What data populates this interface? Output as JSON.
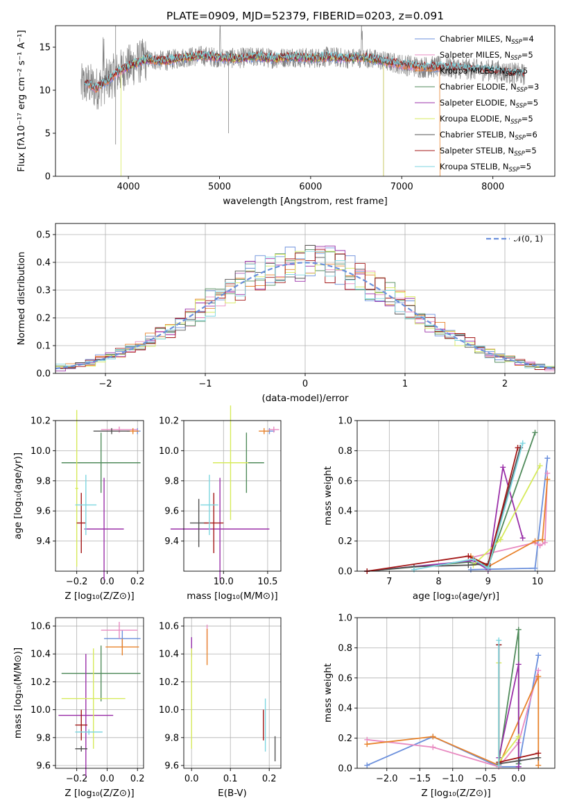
{
  "title": "PLATE=0909, MJD=52379, FIBERID=0203, z=0.091",
  "colors": {
    "chabrier_miles": "#6a8fdc",
    "salpeter_miles": "#e889c0",
    "kroupa_miles": "#e8822a",
    "chabrier_elodie": "#4f8a5a",
    "salpeter_elodie": "#9a2fa8",
    "kroupa_elodie": "#d6ea5a",
    "chabrier_stelib": "#505050",
    "salpeter_stelib": "#a31515",
    "kroupa_stelib": "#7dd6e0",
    "data_spectrum": "#808080"
  },
  "chart_data": [
    {
      "type": "line",
      "id": "spectrum",
      "xlabel": "wavelength [Angstrom, rest frame]",
      "ylabel": "Flux [fλ10⁻¹⁷ erg cm⁻² s⁻¹ A⁻¹]",
      "xlim": [
        3200,
        8680
      ],
      "ylim": [
        0,
        17.5
      ],
      "xticks": [
        "4000",
        "5000",
        "6000",
        "7000",
        "8000"
      ],
      "yticks": [
        "0",
        "5",
        "10",
        "15"
      ],
      "legend": [
        {
          "main": "Chabrier MILES, N",
          "sub": "SSP",
          "tail": "=4",
          "color": "chabrier_miles"
        },
        {
          "main": "Salpeter MILES, N",
          "sub": "SSP",
          "tail": "=5",
          "color": "salpeter_miles"
        },
        {
          "main": "Kroupa MILES, N",
          "sub": "SSP",
          "tail": "=5",
          "color": "kroupa_miles"
        },
        {
          "main": "Chabrier ELODIE, N",
          "sub": "SSP",
          "tail": "=3",
          "color": "chabrier_elodie"
        },
        {
          "main": "Salpeter ELODIE, N",
          "sub": "SSP",
          "tail": "=5",
          "color": "salpeter_elodie"
        },
        {
          "main": "Kroupa ELODIE, N",
          "sub": "SSP",
          "tail": "=5",
          "color": "kroupa_elodie"
        },
        {
          "main": "Chabrier STELIB, N",
          "sub": "SSP",
          "tail": "=6",
          "color": "chabrier_stelib"
        },
        {
          "main": "Salpeter STELIB, N",
          "sub": "SSP",
          "tail": "=5",
          "color": "salpeter_stelib"
        },
        {
          "main": "Kroupa STELIB, N",
          "sub": "SSP",
          "tail": "=5",
          "color": "kroupa_stelib"
        }
      ],
      "legend_position": "upper right",
      "continuum": {
        "x": [
          3480,
          3550,
          3650,
          3750,
          3850,
          3950,
          4050,
          4200,
          4400,
          4600,
          4800,
          5000,
          5200,
          5400,
          5600,
          5800,
          6000,
          6200,
          6400,
          6600,
          6800,
          7000,
          7200,
          7400,
          7600,
          7800,
          8000,
          8200,
          8350
        ],
        "y": [
          10.5,
          10.8,
          10.2,
          11.0,
          11.8,
          12.5,
          13.0,
          13.6,
          13.4,
          13.8,
          14.0,
          13.8,
          13.7,
          13.9,
          13.7,
          13.9,
          13.7,
          13.9,
          13.7,
          13.8,
          13.4,
          13.0,
          12.7,
          12.7,
          12.6,
          12.4,
          12.3,
          12.0,
          11.8
        ]
      }
    },
    {
      "type": "histogram",
      "id": "residuals",
      "xlabel": "(data-model)/error",
      "ylabel": "Normed distribution",
      "xlim": [
        -2.5,
        2.5
      ],
      "ylim": [
        0,
        0.54
      ],
      "xticks": [
        "−2",
        "−1",
        "0",
        "1",
        "2"
      ],
      "yticks": [
        "0.0",
        "0.1",
        "0.2",
        "0.3",
        "0.4",
        "0.5"
      ],
      "legend": [
        {
          "label": "𝒩(0, 1)",
          "color": "#6a8fdc"
        }
      ],
      "legend_position": "upper right",
      "reference_curve": "normal pdf, mean 0, sigma 1"
    },
    {
      "type": "scatter",
      "id": "age_vs_Z",
      "xlabel": "Z [log₁₀(Z/Z⊙)]",
      "ylabel": "age  [log₁₀(age/yr)]",
      "xlim": [
        -0.34,
        0.24
      ],
      "ylim": [
        9.2,
        10.2
      ],
      "xticks": [
        "−0.2",
        "0.0",
        "0.2"
      ],
      "yticks": [
        "9.4",
        "9.6",
        "9.8",
        "10.0",
        "10.2"
      ],
      "points": [
        {
          "x": 0.2,
          "xerr": 0.02,
          "y": 10.13,
          "yerr": 0.02,
          "color": "chabrier_miles"
        },
        {
          "x": 0.08,
          "xerr": 0.12,
          "y": 10.14,
          "yerr": 0.02,
          "color": "salpeter_miles"
        },
        {
          "x": 0.17,
          "xerr": 0.04,
          "y": 10.13,
          "yerr": 0.02,
          "color": "kroupa_miles"
        },
        {
          "x": -0.04,
          "xerr": 0.26,
          "y": 9.92,
          "yerr": 0.2,
          "color": "chabrier_elodie"
        },
        {
          "x": -0.02,
          "xerr": 0.13,
          "y": 9.48,
          "yerr": 0.34,
          "color": "salpeter_elodie"
        },
        {
          "x": -0.2,
          "xerr": 0.01,
          "y": 9.75,
          "yerr": 0.52,
          "color": "kroupa_elodie"
        },
        {
          "x": 0.03,
          "xerr": 0.12,
          "y": 10.13,
          "yerr": 0.02,
          "color": "chabrier_stelib"
        },
        {
          "x": -0.17,
          "xerr": 0.03,
          "y": 9.52,
          "yerr": 0.2,
          "color": "salpeter_stelib"
        },
        {
          "x": -0.14,
          "xerr": 0.07,
          "y": 9.64,
          "yerr": 0.2,
          "color": "kroupa_stelib"
        }
      ]
    },
    {
      "type": "scatter",
      "id": "age_vs_mass",
      "xlabel": "mass [log₁₀(M/M⊙)]",
      "xlim": [
        9.55,
        10.65
      ],
      "ylim": [
        9.2,
        10.2
      ],
      "xticks": [
        "10.0",
        "10.5"
      ],
      "yticks": [
        "9.4",
        "9.6",
        "9.8",
        "10.0",
        "10.2"
      ],
      "points": [
        {
          "x": 10.52,
          "xerr": 0.06,
          "y": 10.13,
          "yerr": 0.02,
          "color": "chabrier_miles"
        },
        {
          "x": 10.57,
          "xerr": 0.06,
          "y": 10.14,
          "yerr": 0.02,
          "color": "salpeter_miles"
        },
        {
          "x": 10.46,
          "xerr": 0.06,
          "y": 10.13,
          "yerr": 0.02,
          "color": "kroupa_miles"
        },
        {
          "x": 10.26,
          "xerr": 0.2,
          "y": 9.92,
          "yerr": 0.2,
          "color": "chabrier_elodie"
        },
        {
          "x": 9.96,
          "xerr": 0.56,
          "y": 9.48,
          "yerr": 0.34,
          "color": "salpeter_elodie"
        },
        {
          "x": 10.08,
          "xerr": 0.2,
          "y": 9.92,
          "yerr": 0.38,
          "color": "kroupa_elodie"
        },
        {
          "x": 9.72,
          "xerr": 0.1,
          "y": 9.52,
          "yerr": 0.16,
          "color": "chabrier_stelib"
        },
        {
          "x": 9.89,
          "xerr": 0.11,
          "y": 9.52,
          "yerr": 0.2,
          "color": "salpeter_stelib"
        },
        {
          "x": 9.84,
          "xerr": 0.1,
          "y": 9.64,
          "yerr": 0.2,
          "color": "kroupa_stelib"
        }
      ]
    },
    {
      "type": "line",
      "id": "weight_vs_age",
      "xlabel": "age  [log₁₀(age/yr)]",
      "ylabel": "mass weight",
      "xlim": [
        6.35,
        10.35
      ],
      "ylim": [
        0,
        1
      ],
      "xticks": [
        "7",
        "8",
        "9",
        "10"
      ],
      "yticks": [
        "0.0",
        "0.2",
        "0.4",
        "0.6",
        "0.8",
        "1.0"
      ],
      "series": [
        {
          "color": "chabrier_miles",
          "x": [
            8.65,
            9.95,
            10.2
          ],
          "y": [
            0.01,
            0.02,
            0.75
          ]
        },
        {
          "color": "salpeter_miles",
          "x": [
            8.65,
            9.95,
            10.05,
            10.15,
            10.2
          ],
          "y": [
            0.09,
            0.19,
            0.17,
            0.19,
            0.65
          ]
        },
        {
          "color": "kroupa_miles",
          "x": [
            8.65,
            9.0,
            9.95,
            10.1,
            10.2
          ],
          "y": [
            0.1,
            0.03,
            0.2,
            0.21,
            0.61
          ]
        },
        {
          "color": "chabrier_elodie",
          "x": [
            6.55,
            8.6,
            9.0,
            9.95
          ],
          "y": [
            0.0,
            0.06,
            0.03,
            0.92
          ]
        },
        {
          "color": "salpeter_elodie",
          "x": [
            6.55,
            8.7,
            9.0,
            9.3,
            9.7
          ],
          "y": [
            0.0,
            0.07,
            0.01,
            0.69,
            0.22
          ]
        },
        {
          "color": "kroupa_elodie",
          "x": [
            8.7,
            9.25,
            10.05
          ],
          "y": [
            0.04,
            0.21,
            0.7
          ]
        },
        {
          "color": "chabrier_stelib",
          "x": [
            6.55,
            7.5,
            8.6,
            9.0,
            9.65
          ],
          "y": [
            0.0,
            0.03,
            0.04,
            0.05,
            0.82
          ]
        },
        {
          "color": "salpeter_stelib",
          "x": [
            6.55,
            8.6,
            9.0,
            9.6
          ],
          "y": [
            0.0,
            0.1,
            0.04,
            0.82
          ]
        },
        {
          "color": "kroupa_stelib",
          "x": [
            7.5,
            8.7,
            9.0,
            9.7
          ],
          "y": [
            0.01,
            0.08,
            0.02,
            0.85
          ]
        }
      ]
    },
    {
      "type": "scatter",
      "id": "mass_vs_Z",
      "xlabel": "Z [log₁₀(Z/Z⊙)]",
      "ylabel": "mass [log₁₀(M/M⊙)]",
      "xlim": [
        -0.34,
        0.24
      ],
      "ylim": [
        9.58,
        10.66
      ],
      "xticks": [
        "−0.2",
        "0.0",
        "0.2"
      ],
      "yticks": [
        "9.6",
        "9.8",
        "10.0",
        "10.2",
        "10.4",
        "10.6"
      ],
      "points": [
        {
          "x": 0.1,
          "xerr": 0.12,
          "y": 10.51,
          "yerr": 0.06,
          "color": "chabrier_miles"
        },
        {
          "x": 0.08,
          "xerr": 0.12,
          "y": 10.57,
          "yerr": 0.06,
          "color": "salpeter_miles"
        },
        {
          "x": 0.1,
          "xerr": 0.11,
          "y": 10.45,
          "yerr": 0.06,
          "color": "kroupa_miles"
        },
        {
          "x": -0.04,
          "xerr": 0.26,
          "y": 10.26,
          "yerr": 0.2,
          "color": "chabrier_elodie"
        },
        {
          "x": -0.14,
          "xerr": 0.18,
          "y": 9.96,
          "yerr": 0.44,
          "color": "salpeter_elodie"
        },
        {
          "x": -0.09,
          "xerr": 0.21,
          "y": 10.08,
          "yerr": 0.36,
          "color": "kroupa_elodie"
        },
        {
          "x": -0.17,
          "xerr": 0.04,
          "y": 9.72,
          "yerr": 0.02,
          "color": "chabrier_stelib"
        },
        {
          "x": -0.17,
          "xerr": 0.04,
          "y": 9.89,
          "yerr": 0.11,
          "color": "salpeter_stelib"
        },
        {
          "x": -0.12,
          "xerr": 0.09,
          "y": 9.84,
          "yerr": 0.02,
          "color": "kroupa_stelib"
        }
      ]
    },
    {
      "type": "scatter",
      "id": "mass_vs_ebv",
      "xlabel": "E(B-V)",
      "xlim": [
        -0.02,
        0.23
      ],
      "ylim": [
        9.58,
        10.66
      ],
      "xticks": [
        "0.0",
        "0.1",
        "0.2"
      ],
      "yticks": [
        "9.6",
        "9.8",
        "10.0",
        "10.2",
        "10.4",
        "10.6"
      ],
      "points": [
        {
          "x": 0.0,
          "y": 10.45,
          "yerr": 0.07,
          "color": "chabrier_miles"
        },
        {
          "x": 0.04,
          "y": 10.52,
          "yerr": 0.09,
          "color": "salpeter_miles"
        },
        {
          "x": 0.04,
          "y": 10.45,
          "yerr": 0.13,
          "color": "kroupa_miles"
        },
        {
          "x": 0.0,
          "y": 10.45,
          "yerr": 0.07,
          "color": "salpeter_elodie"
        },
        {
          "x": 0.0,
          "y": 10.08,
          "yerr": 0.36,
          "color": "kroupa_elodie"
        },
        {
          "x": 0.215,
          "y": 9.72,
          "yerr": 0.09,
          "color": "chabrier_stelib"
        },
        {
          "x": 0.185,
          "y": 9.89,
          "yerr": 0.11,
          "color": "salpeter_stelib"
        },
        {
          "x": 0.19,
          "y": 9.89,
          "yerr": 0.19,
          "color": "kroupa_stelib"
        }
      ]
    },
    {
      "type": "line",
      "id": "weight_vs_Z",
      "xlabel": "Z [log₁₀(Z/Z⊙)]",
      "ylabel": "mass weight",
      "xlim": [
        -2.45,
        0.55
      ],
      "ylim": [
        0,
        1
      ],
      "xticks": [
        "−2.0",
        "−1.5",
        "−1.0",
        "−0.5",
        "0.0"
      ],
      "yticks": [
        "0.0",
        "0.2",
        "0.4",
        "0.6",
        "0.8",
        "1.0"
      ],
      "series": [
        {
          "color": "chabrier_miles",
          "x": [
            -2.3,
            -1.3,
            -0.3,
            0.0,
            0.3
          ],
          "y": [
            0.02,
            0.21,
            0.01,
            0.01,
            0.75
          ]
        },
        {
          "color": "salpeter_miles",
          "x": [
            -2.3,
            -1.3,
            -0.3,
            0.0,
            0.3
          ],
          "y": [
            0.19,
            0.14,
            0.01,
            0.17,
            0.65
          ]
        },
        {
          "color": "kroupa_miles",
          "x": [
            -2.3,
            -1.3,
            -0.3,
            0.3,
            0.3
          ],
          "y": [
            0.16,
            0.21,
            0.02,
            0.61,
            0.02
          ]
        },
        {
          "color": "chabrier_elodie",
          "x": [
            -0.3,
            0.0,
            0.0
          ],
          "y": [
            0.04,
            0.92,
            0.03
          ]
        },
        {
          "color": "salpeter_elodie",
          "x": [
            -0.3,
            0.0,
            0.0
          ],
          "y": [
            0.07,
            0.69,
            0.01
          ]
        },
        {
          "color": "kroupa_elodie",
          "x": [
            -0.3,
            -0.3,
            0.0
          ],
          "y": [
            0.7,
            0.04,
            0.21
          ]
        },
        {
          "color": "chabrier_stelib",
          "x": [
            -0.3,
            -0.3,
            0.0,
            0.3
          ],
          "y": [
            0.82,
            0.03,
            0.05,
            0.07
          ]
        },
        {
          "color": "salpeter_stelib",
          "x": [
            -0.3,
            -0.3,
            0.3
          ],
          "y": [
            0.82,
            0.04,
            0.1
          ]
        },
        {
          "color": "kroupa_stelib",
          "x": [
            -0.3,
            -0.3
          ],
          "y": [
            0.85,
            0.02
          ]
        }
      ]
    }
  ]
}
